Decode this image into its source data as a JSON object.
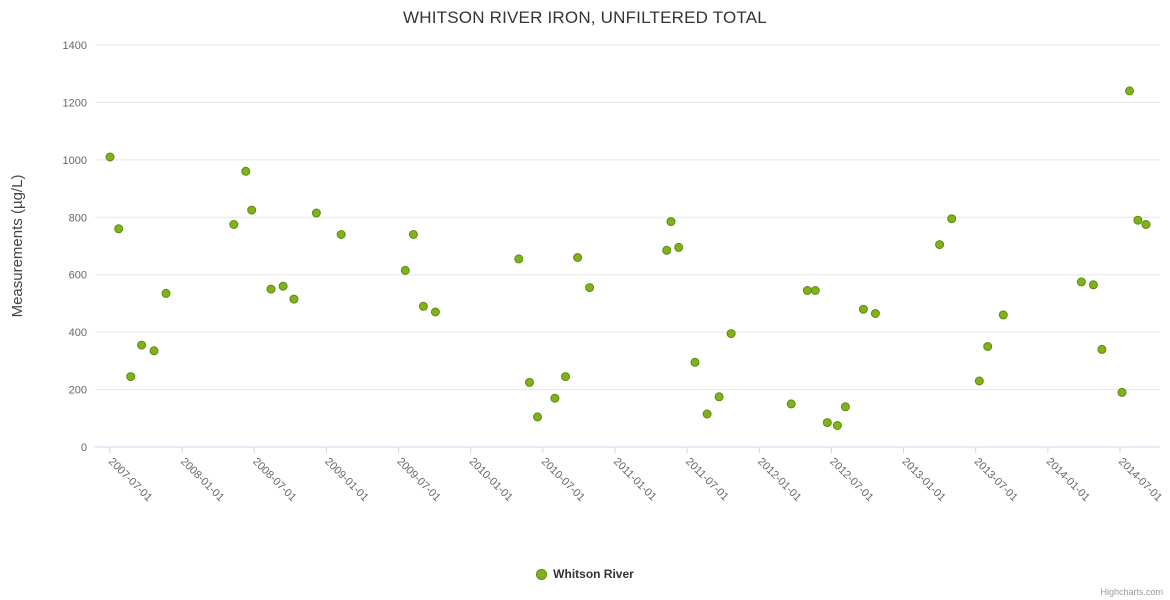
{
  "credits": {
    "label": "Highcharts.com"
  },
  "chart_data": {
    "type": "scatter",
    "title": "WHITSON RIVER IRON, UNFILTERED TOTAL",
    "xlabel": "",
    "ylabel": "Measurements (µg/L)",
    "ylim": [
      0,
      1400
    ],
    "y_tick_interval": 200,
    "grid": true,
    "legend_position": "bottom-center",
    "grid_color": "#e6e6e6",
    "axis_color": "#ccd6eb",
    "tick_label_color": "#666666",
    "axis_title_color": "#444444",
    "x_ticks": [
      "2007-07-01",
      "2008-01-01",
      "2008-07-01",
      "2009-01-01",
      "2009-07-01",
      "2010-01-01",
      "2010-07-01",
      "2011-01-01",
      "2011-07-01",
      "2012-01-01",
      "2012-07-01",
      "2013-01-01",
      "2013-07-01",
      "2014-01-01",
      "2014-07-01"
    ],
    "series": [
      {
        "name": "Whitson River",
        "color": "#7eb319",
        "border_color": "#5e8a0f",
        "points": [
          [
            "2007-07-01",
            1010
          ],
          [
            "2007-07-23",
            760
          ],
          [
            "2007-08-23",
            245
          ],
          [
            "2007-09-20",
            355
          ],
          [
            "2007-10-21",
            335
          ],
          [
            "2007-11-21",
            535
          ],
          [
            "2008-05-10",
            775
          ],
          [
            "2008-06-10",
            960
          ],
          [
            "2008-06-25",
            825
          ],
          [
            "2008-08-13",
            550
          ],
          [
            "2008-09-13",
            560
          ],
          [
            "2008-10-10",
            515
          ],
          [
            "2008-12-06",
            815
          ],
          [
            "2009-02-08",
            740
          ],
          [
            "2009-07-18",
            615
          ],
          [
            "2009-08-08",
            740
          ],
          [
            "2009-09-03",
            490
          ],
          [
            "2009-10-03",
            470
          ],
          [
            "2010-05-01",
            655
          ],
          [
            "2010-05-28",
            225
          ],
          [
            "2010-06-18",
            105
          ],
          [
            "2010-08-01",
            170
          ],
          [
            "2010-08-28",
            245
          ],
          [
            "2010-09-28",
            660
          ],
          [
            "2010-10-28",
            555
          ],
          [
            "2011-05-10",
            685
          ],
          [
            "2011-05-21",
            785
          ],
          [
            "2011-06-10",
            695
          ],
          [
            "2011-07-21",
            295
          ],
          [
            "2011-08-21",
            115
          ],
          [
            "2011-09-21",
            175
          ],
          [
            "2011-10-21",
            395
          ],
          [
            "2012-03-21",
            150
          ],
          [
            "2012-05-01",
            545
          ],
          [
            "2012-05-21",
            545
          ],
          [
            "2012-06-21",
            85
          ],
          [
            "2012-07-16",
            75
          ],
          [
            "2012-08-06",
            140
          ],
          [
            "2012-09-21",
            480
          ],
          [
            "2012-10-21",
            465
          ],
          [
            "2013-04-01",
            705
          ],
          [
            "2013-05-01",
            795
          ],
          [
            "2013-07-10",
            230
          ],
          [
            "2013-08-01",
            350
          ],
          [
            "2013-09-10",
            460
          ],
          [
            "2014-03-25",
            575
          ],
          [
            "2014-04-25",
            565
          ],
          [
            "2014-05-16",
            340
          ],
          [
            "2014-07-06",
            190
          ],
          [
            "2014-07-25",
            1240
          ],
          [
            "2014-08-16",
            790
          ],
          [
            "2014-09-06",
            775
          ]
        ]
      }
    ]
  }
}
